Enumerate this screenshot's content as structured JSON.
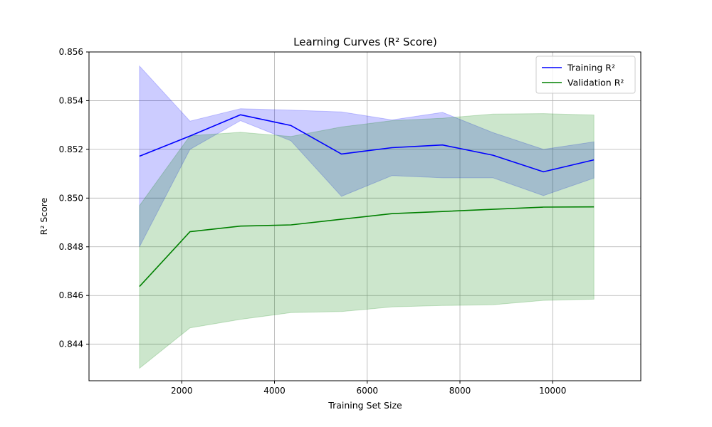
{
  "chart_data": {
    "type": "line",
    "title": "Learning Curves (R² Score)",
    "xlabel": "Training Set Size",
    "ylabel": "R² Score",
    "xlim": [
      0,
      11900
    ],
    "ylim": [
      0.8425,
      0.856
    ],
    "xticks": [
      2000,
      4000,
      6000,
      8000,
      10000
    ],
    "xtick_labels": [
      "2000",
      "4000",
      "6000",
      "8000",
      "10000"
    ],
    "yticks": [
      0.844,
      0.846,
      0.848,
      0.85,
      0.852,
      0.854,
      0.856
    ],
    "ytick_labels": [
      "0.844",
      "0.846",
      "0.848",
      "0.850",
      "0.852",
      "0.854",
      "0.856"
    ],
    "grid": true,
    "legend_position": "top-right",
    "x": [
      1089,
      2178,
      3267,
      4356,
      5445,
      6534,
      7623,
      8712,
      9801,
      10890
    ],
    "series": [
      {
        "name": "Training R²",
        "color": "#0000ff",
        "band_color": "#0000ff",
        "values": [
          0.85172,
          0.85255,
          0.85342,
          0.85298,
          0.85181,
          0.85207,
          0.85218,
          0.85176,
          0.85108,
          0.85157
        ],
        "lower": [
          0.848,
          0.852,
          0.85318,
          0.85235,
          0.85007,
          0.85092,
          0.85083,
          0.85083,
          0.8501,
          0.85082
        ],
        "upper": [
          0.85542,
          0.85316,
          0.85367,
          0.85361,
          0.85354,
          0.85321,
          0.85352,
          0.85269,
          0.852,
          0.85231
        ]
      },
      {
        "name": "Validation R²",
        "color": "#008000",
        "band_color": "#008000",
        "values": [
          0.84637,
          0.84862,
          0.84885,
          0.8489,
          0.84913,
          0.84936,
          0.84945,
          0.84954,
          0.84963,
          0.84964
        ],
        "lower": [
          0.84301,
          0.84467,
          0.84502,
          0.8453,
          0.84534,
          0.84553,
          0.84559,
          0.84562,
          0.8458,
          0.84585
        ],
        "upper": [
          0.84969,
          0.85256,
          0.8527,
          0.85253,
          0.85292,
          0.85318,
          0.85328,
          0.85345,
          0.85347,
          0.85341
        ]
      }
    ]
  }
}
